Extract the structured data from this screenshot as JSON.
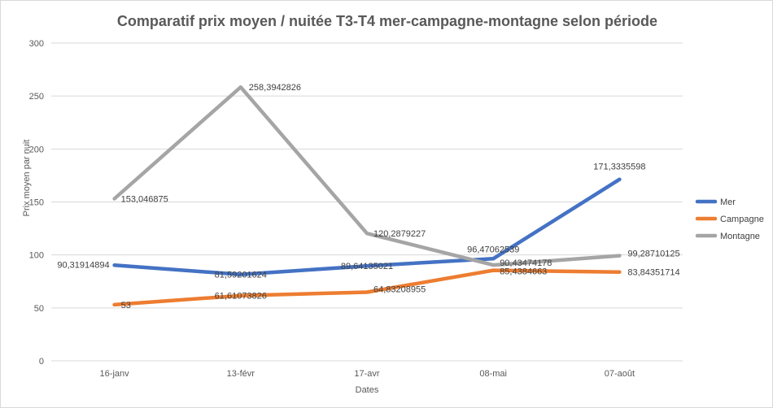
{
  "chart_data": {
    "type": "line",
    "title": "Comparatif  prix moyen / nuitée T3-T4 mer-campagne-montagne  selon période",
    "xlabel": "Dates",
    "ylabel": "Prix moyen par nuit",
    "categories": [
      "16-janv",
      "13-févr",
      "17-avr",
      "08-mai",
      "07-août"
    ],
    "ylim": [
      0,
      300
    ],
    "yticks": [
      0,
      50,
      100,
      150,
      200,
      250,
      300
    ],
    "ytick_labels": [
      "0",
      "50",
      "100",
      "150",
      "200",
      "250",
      "300"
    ],
    "grid": true,
    "legend_position": "right",
    "series": [
      {
        "name": "Mer",
        "color": "#4472c4",
        "values": [
          90.31914894,
          81.59201624,
          89.64135021,
          96.47062539,
          171.3335598
        ],
        "labels": [
          "90,31914894",
          "81,59201624",
          "89,64135021",
          "96,47062539",
          "171,3335598"
        ]
      },
      {
        "name": "Campagne",
        "color": "#ed7d31",
        "values": [
          53,
          61.61073826,
          64.83208955,
          85.4384663,
          83.84351714
        ],
        "labels": [
          "53",
          "61,61073826",
          "64,83208955",
          "85,4384663",
          "83,84351714"
        ]
      },
      {
        "name": "Montagne",
        "color": "#a5a5a5",
        "values": [
          153.046875,
          258.3942826,
          120.2879227,
          90.43474178,
          99.28710125
        ],
        "labels": [
          "153,046875",
          "258,3942826",
          "120,2879227",
          "90,43474178",
          "99,28710125"
        ]
      }
    ]
  }
}
